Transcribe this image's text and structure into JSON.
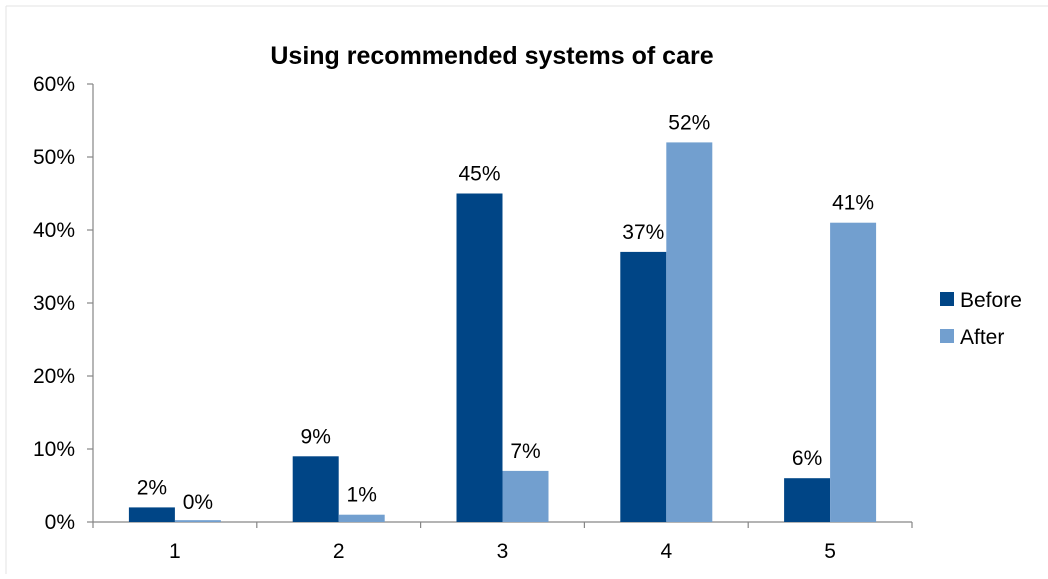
{
  "chart_data": {
    "type": "bar",
    "title": "Using recommended systems of care",
    "xlabel": "",
    "ylabel": "",
    "categories": [
      "1",
      "2",
      "3",
      "4",
      "5"
    ],
    "series": [
      {
        "name": "Before",
        "values": [
          2,
          9,
          45,
          37,
          6
        ],
        "labels": [
          "2%",
          "9%",
          "45%",
          "37%",
          "6%"
        ],
        "color": "#004586"
      },
      {
        "name": "After",
        "values": [
          0,
          1,
          7,
          52,
          41
        ],
        "labels": [
          "0%",
          "1%",
          "7%",
          "52%",
          "41%"
        ],
        "color": "#729fcf"
      }
    ],
    "ylim": [
      0,
      60
    ],
    "yticks": [
      "0%",
      "10%",
      "20%",
      "30%",
      "40%",
      "50%",
      "60%"
    ],
    "legend": "right",
    "grid": false
  }
}
